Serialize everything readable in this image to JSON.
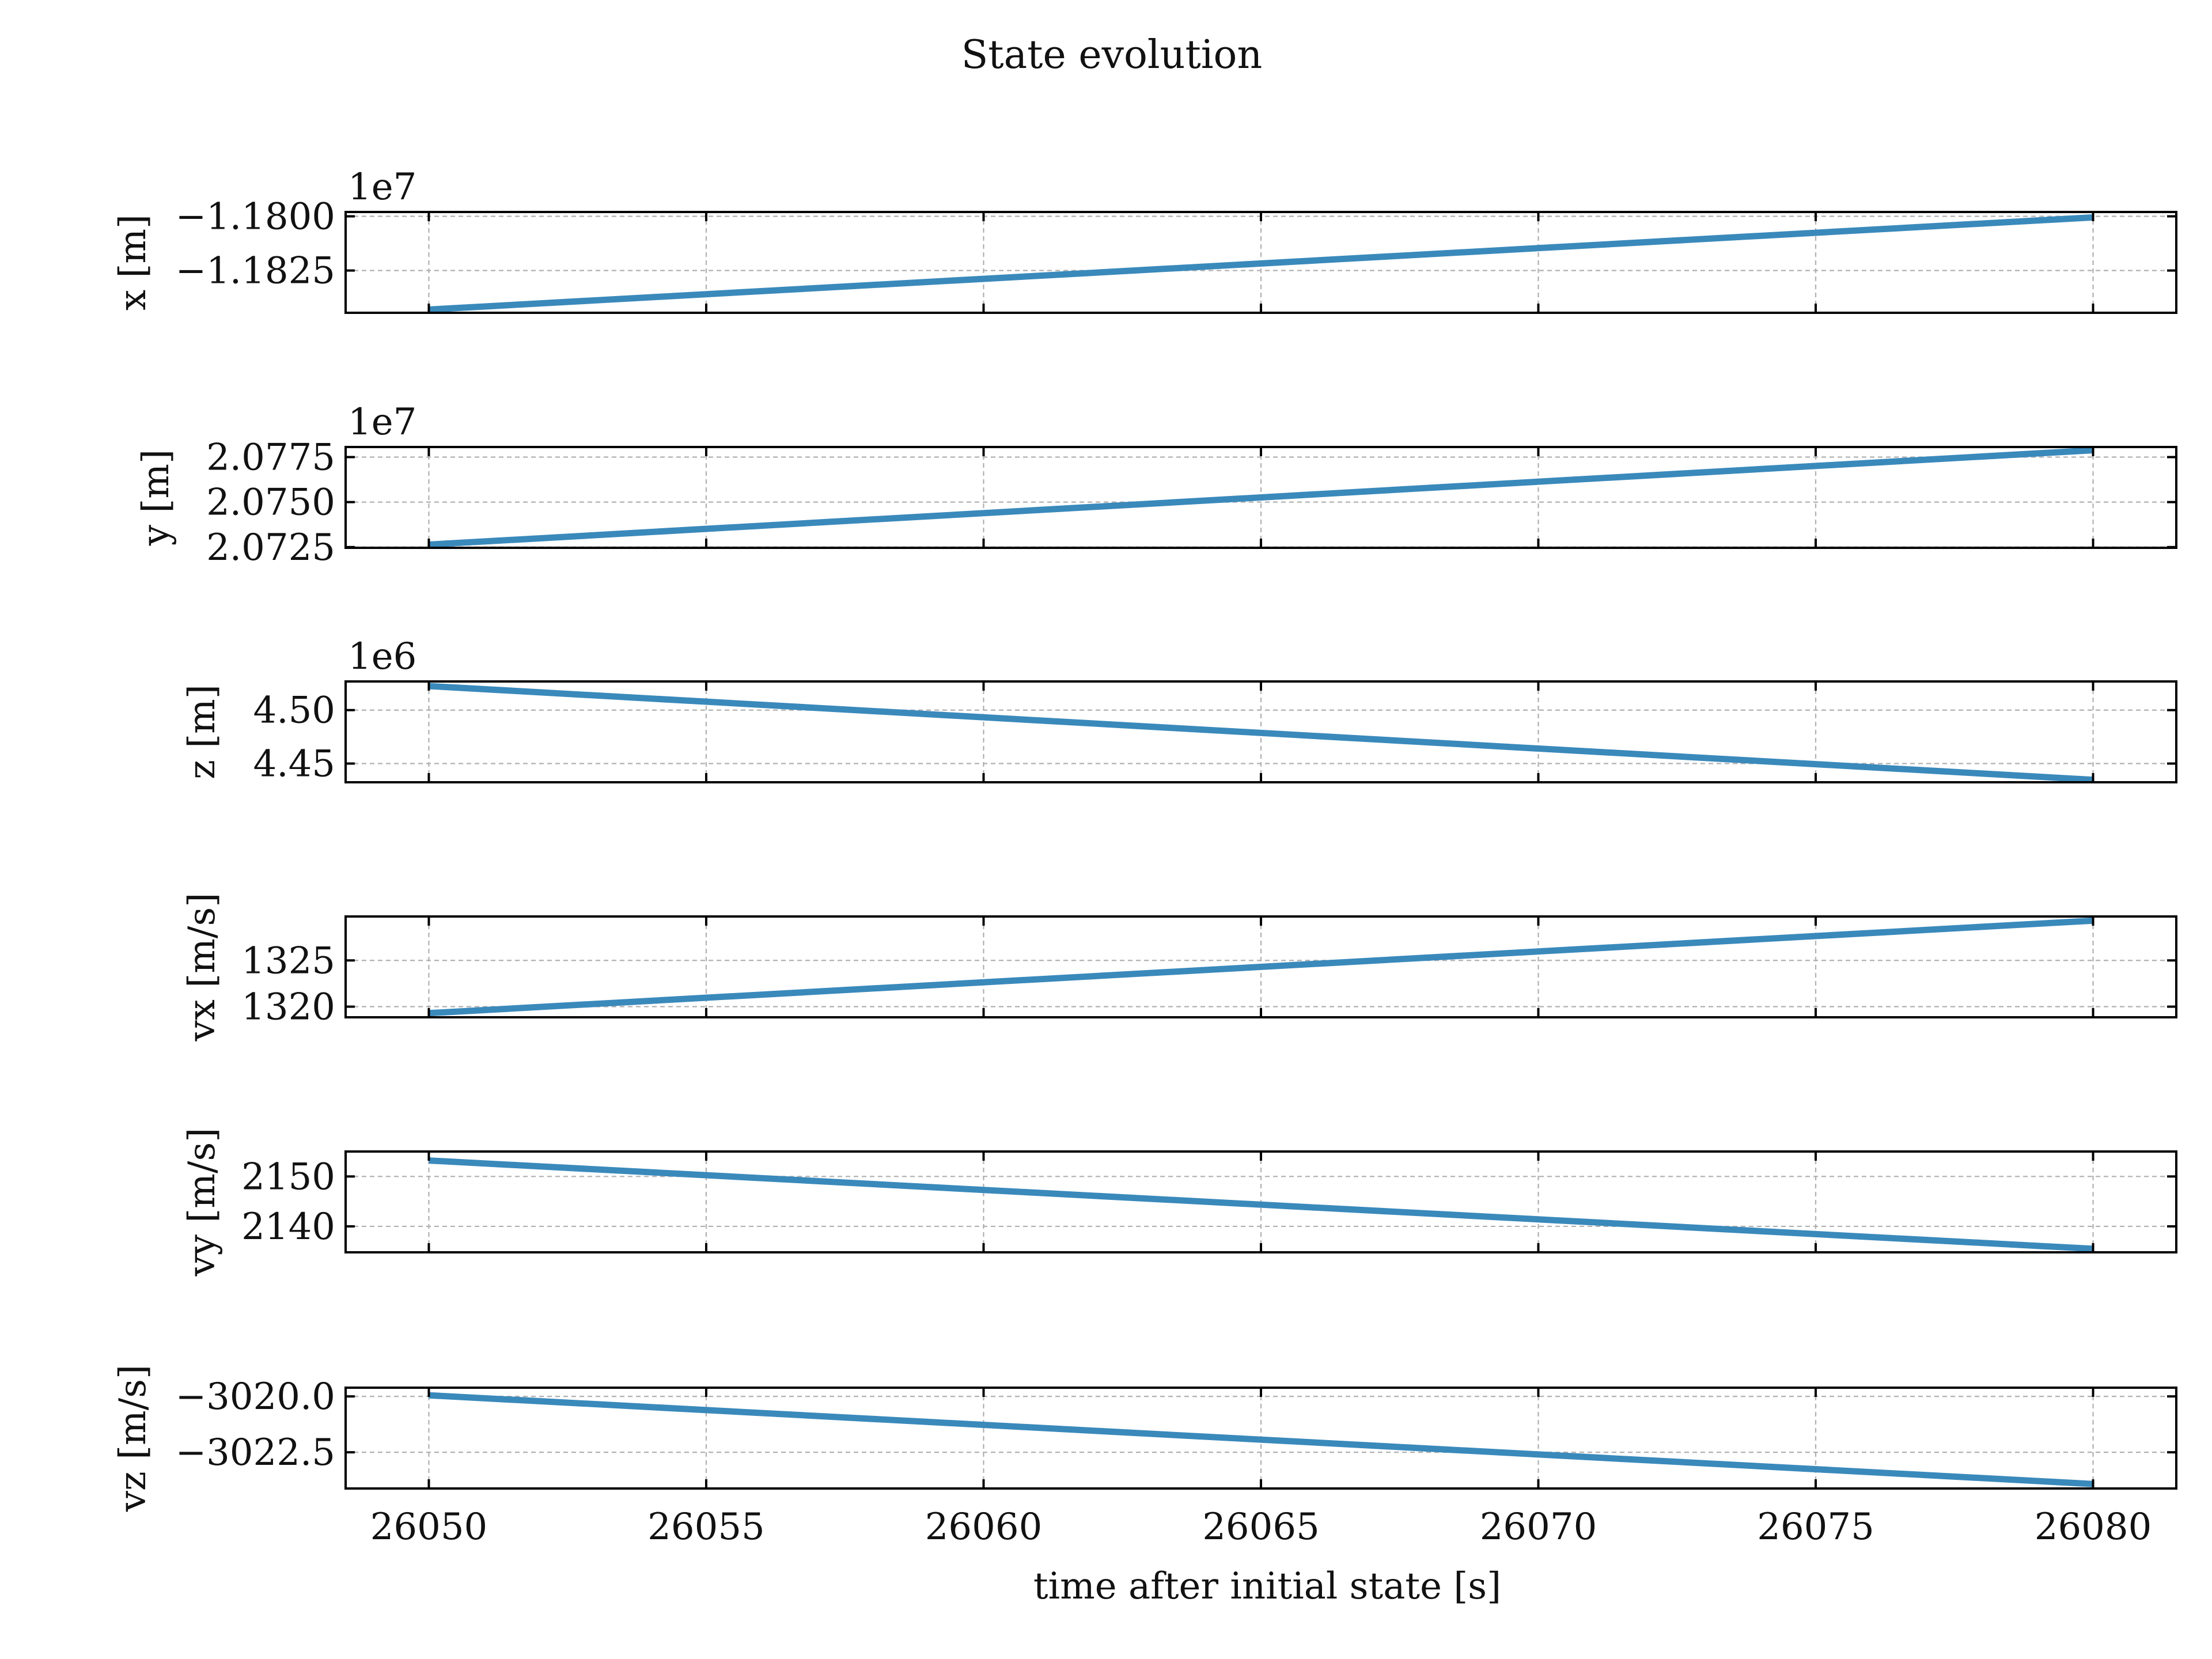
{
  "chart_data": {
    "title": "State evolution",
    "xlabel": "time after initial state [s]",
    "x": [
      26050,
      26080
    ],
    "x_ticks": [
      "26050",
      "26055",
      "26060",
      "26065",
      "26070",
      "26075",
      "26080"
    ],
    "x_tick_values": [
      26050,
      26055,
      26060,
      26065,
      26070,
      26075,
      26080
    ],
    "xlim": [
      26048.5,
      26081.5
    ],
    "grid": true,
    "line_color": "#3a89bb",
    "panels": [
      {
        "type": "line",
        "ylabel": "x [m]",
        "offset_label": "1e7",
        "ylim": [
          -1.18445,
          -1.1798
        ],
        "y_ticks": [
          "−1.1800",
          "−1.1825"
        ],
        "y_tick_values": [
          -1.18,
          -1.1825
        ],
        "values": [
          -1.1843,
          -1.18005
        ]
      },
      {
        "type": "line",
        "ylabel": "y [m]",
        "offset_label": "1e7",
        "ylim": [
          2.07246,
          2.07806
        ],
        "y_ticks": [
          "2.0775",
          "2.0750",
          "2.0725"
        ],
        "y_tick_values": [
          2.0775,
          2.075,
          2.0725
        ],
        "values": [
          2.07264,
          2.07788
        ]
      },
      {
        "type": "line",
        "ylabel": "z [m]",
        "offset_label": "1e6",
        "ylim": [
          4.4325,
          4.5268
        ],
        "y_ticks": [
          "4.50",
          "4.45"
        ],
        "y_tick_values": [
          4.5,
          4.45
        ],
        "values": [
          4.5225,
          4.4348
        ]
      },
      {
        "type": "line",
        "ylabel": "vx [m/s]",
        "offset_label": "",
        "ylim": [
          1318.85,
          1329.75
        ],
        "y_ticks": [
          "1325",
          "1320"
        ],
        "y_tick_values": [
          1325,
          1320
        ],
        "values": [
          1319.3,
          1329.3
        ]
      },
      {
        "type": "line",
        "ylabel": "vy [m/s]",
        "offset_label": "",
        "ylim": [
          2134.8,
          2155.0
        ],
        "y_ticks": [
          "2150",
          "2140"
        ],
        "y_tick_values": [
          2150,
          2140
        ],
        "values": [
          2153.2,
          2135.5
        ]
      },
      {
        "type": "line",
        "ylabel": "vz [m/s]",
        "offset_label": "",
        "ylim": [
          -3024.12,
          -3019.61
        ],
        "y_ticks": [
          "−3020.0",
          "−3022.5"
        ],
        "y_tick_values": [
          -3020.0,
          -3022.5
        ],
        "values": [
          -3019.95,
          -3023.92
        ]
      }
    ]
  }
}
